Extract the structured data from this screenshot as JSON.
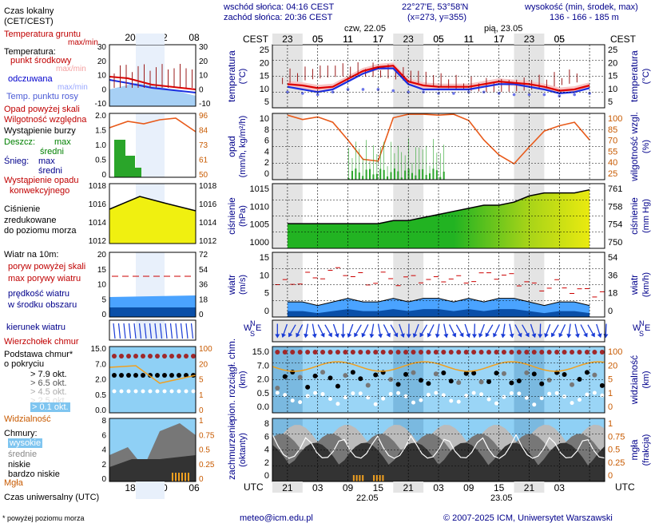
{
  "header": {
    "sunrise": "wschód słońca: 04:16 CEST",
    "sunset": "zachód słońca: 20:36 CEST",
    "coords": "22°27'E, 53°58'N",
    "grid": "(x=273, y=355)",
    "height_label": "wysokość (min, środek, max)",
    "height_values": "136 - 166 - 185 m",
    "tz_left": "CEST",
    "tz_right": "CEST",
    "day1": "czw, 22.05",
    "day2": "pią, 23.05",
    "hours_top": [
      "23",
      "05",
      "11",
      "17",
      "23",
      "05",
      "11",
      "17",
      "23",
      "05"
    ]
  },
  "footer": {
    "utc_left": "UTC",
    "utc_right": "UTC",
    "hours_bottom": [
      "21",
      "03",
      "09",
      "15",
      "21",
      "03",
      "09",
      "15",
      "21",
      "03"
    ],
    "date1": "22.05",
    "date2": "23.05",
    "email": "meteo@icm.edu.pl",
    "copyright": "© 2007-2025 ICM, Uniwersytet Warszawski"
  },
  "legend": {
    "local_time": "Czas lokalny",
    "local_time_sub": "(CET/CEST)",
    "legend_hours_top": [
      "20",
      "02",
      "08"
    ],
    "soil_temp": "Temperatura gruntu",
    "max_min": "max/min",
    "temperature": "Temperatura:",
    "mid_point": "punkt środkowy",
    "max_min2": "max/min",
    "perceived": "odczuwana",
    "max_min3": "max/min",
    "dew_point": "Temp. punktu rosy",
    "rain_over": "Opad powyżej skali",
    "humidity": "Wilgotność względna",
    "storm": "Wystąpienie burzy",
    "rain": "Deszcz:",
    "max": "max",
    "mid": "średni",
    "snow": "Śnieg:",
    "max2": "max",
    "mid2": "średni",
    "conv1": "Wystąpienie opadu",
    "conv2": "konwekcyjnego",
    "pressure1": "Ciśnienie",
    "pressure2": "zredukowane",
    "pressure3": "do poziomu morza",
    "wind_10m": "Wiatr na 10m:",
    "gust_over": "poryw powyżej skali",
    "gust_max": "max porywy wiatru",
    "wind_avg1": "prędkość wiatru",
    "wind_avg2": "w środku obszaru",
    "wind_dir": "kierunek wiatru",
    "cloud_top": "Wierzchołek chmur",
    "cloud_base1": "Podstawa chmur*",
    "cloud_base2": "o pokryciu",
    "okt79": "> 7.9 okt.",
    "okt65": "> 6.5 okt.",
    "okt45": "> 4.5 okt.",
    "okt25": "> 2.5 okt.",
    "okt01": "> 0.1 okt.",
    "visibility": "Widzialność",
    "clouds": "Chmury:",
    "high": "wysokie",
    "medium": "średnie",
    "low": "niskie",
    "very_low": "bardzo niskie",
    "fog": "Mgła",
    "utc": "Czas uniwersalny (UTC)",
    "legend_hours_bottom": [
      "18",
      "00",
      "06"
    ],
    "footnote": "* powyżej poziomu morza"
  },
  "panels": {
    "temp": {
      "ylabel_l": "temperatura",
      "ylabel_l2": "(°C)",
      "ylabel_r": "temperatura",
      "ylabel_r2": "(°C)",
      "ticks": [
        "25",
        "20",
        "15",
        "10",
        "5"
      ]
    },
    "precip": {
      "ylabel_l": "opad",
      "ylabel_l2": "(mm/h, kg/m²/h)",
      "ylabel_r": "wilgotność wzgl.",
      "ylabel_r2": "(%)",
      "ticks_l": [
        "10",
        "8",
        "6",
        "4",
        "2",
        "0"
      ],
      "ticks_r": [
        "100",
        "85",
        "70",
        "55",
        "40",
        "25"
      ]
    },
    "pressure": {
      "ylabel_l": "ciśnienie",
      "ylabel_l2": "(hPa)",
      "ylabel_r": "ciśnienie",
      "ylabel_r2": "(mm Hg)",
      "ticks_l": [
        "1015",
        "1010",
        "1005",
        "1000"
      ],
      "ticks_r": [
        "761",
        "758",
        "754",
        "750"
      ]
    },
    "wind": {
      "ylabel_l": "wiatr",
      "ylabel_l2": "(m/s)",
      "ylabel_r": "wiatr",
      "ylabel_r2": "(km/h)",
      "ticks_l": [
        "15",
        "10",
        "5",
        "0"
      ],
      "ticks_r": [
        "54",
        "36",
        "18",
        "0"
      ]
    },
    "clouds": {
      "ylabel_l": "pion. rozciągł. chm.",
      "ylabel_l2": "(km)",
      "ylabel_r": "widzialność",
      "ylabel_r2": "(km)",
      "ticks_l": [
        "15.0",
        "7.0",
        "2.0",
        "0.5",
        "0.0"
      ],
      "ticks_r": [
        "100",
        "20",
        "5",
        "1",
        "0"
      ]
    },
    "cover": {
      "ylabel_l": "zachmurzenie",
      "ylabel_l2": "(oktanty)",
      "ylabel_r": "mgła",
      "ylabel_r2": "(frakcja)",
      "ticks_l": [
        "8",
        "6",
        "4",
        "2",
        "0"
      ],
      "ticks_r": [
        "1",
        "0.75",
        "0.5",
        "0.25",
        "0"
      ]
    }
  },
  "chart_data": {
    "type": "line",
    "x_hours_utc": [
      0,
      3,
      6,
      9,
      12,
      15,
      18,
      21,
      24,
      27,
      30,
      33,
      36,
      39,
      42,
      45,
      48,
      51,
      54,
      57,
      60
    ],
    "series": [
      {
        "name": "punkt środkowy",
        "values": [
          12,
          11.5,
          10.5,
          11,
          14,
          17,
          18.5,
          19,
          13,
          11.5,
          11,
          11,
          11,
          12,
          13,
          12.5,
          12,
          11,
          9.5,
          10,
          11.5
        ]
      },
      {
        "name": "odczuwana",
        "values": [
          11,
          10,
          9,
          10,
          13,
          16,
          18,
          18,
          12,
          10,
          10,
          10,
          10,
          11,
          12,
          12,
          11,
          10,
          8.5,
          9,
          10.5
        ]
      },
      {
        "name": "Temp. punktu rosy",
        "values": [
          9,
          8.5,
          8,
          9,
          10,
          10,
          10,
          9.5,
          9,
          9,
          8.5,
          8.5,
          9,
          9,
          8.5,
          8,
          8,
          8,
          7.5,
          8,
          8.5
        ]
      },
      {
        "name": "Wilgotność względna",
        "values": [
          98,
          93,
          96,
          90,
          70,
          48,
          46,
          95,
          99,
          99,
          98,
          99,
          92,
          70,
          53,
          43,
          62,
          80,
          86,
          90,
          70
        ]
      },
      {
        "name": "Ciśnienie",
        "values": [
          1004,
          1004,
          1004,
          1004,
          1004,
          1004,
          1004,
          1005,
          1005,
          1006,
          1007,
          1008,
          1009,
          1010,
          1010,
          1011,
          1013,
          1014,
          1014,
          1014,
          1015
        ]
      },
      {
        "name": "prędkość wiatru",
        "values": [
          3,
          3,
          2,
          3,
          4,
          3,
          3,
          4,
          3,
          4,
          4,
          3,
          4,
          3,
          4,
          4,
          3,
          2,
          3,
          3,
          2
        ]
      },
      {
        "name": "max porywy wiatru",
        "values": [
          9,
          10,
          11,
          12,
          13,
          11,
          10,
          11,
          10,
          11,
          10,
          11,
          10,
          11,
          12,
          11,
          10,
          8,
          9,
          8,
          7
        ]
      }
    ],
    "ylim_temperature": [
      3,
      27
    ],
    "ylim_precip": [
      0,
      10
    ],
    "ylim_humidity": [
      25,
      100
    ],
    "ylim_pressure": [
      996,
      1017
    ],
    "ylim_wind": [
      0,
      18
    ],
    "grid": true
  }
}
